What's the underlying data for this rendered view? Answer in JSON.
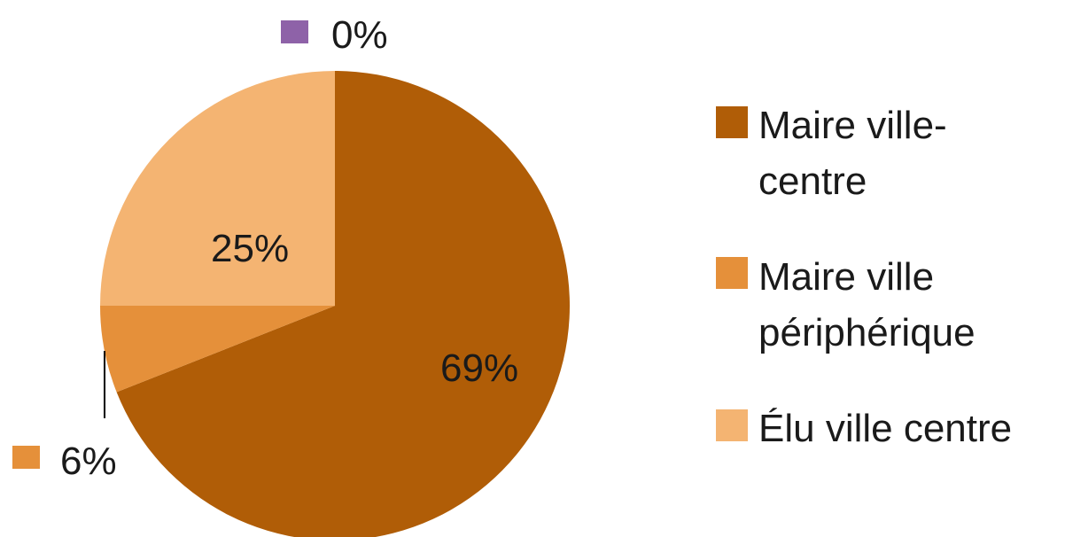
{
  "chart_data": {
    "type": "pie",
    "slices": [
      {
        "label": "Maire ville-centre",
        "value": 69,
        "display": "69%",
        "color": "#B05D07"
      },
      {
        "label": "Maire ville périphérique",
        "value": 6,
        "display": "6%",
        "color": "#E5903A"
      },
      {
        "label": "Élu ville centre",
        "value": 25,
        "display": "25%",
        "color": "#F4B472"
      },
      {
        "label": "",
        "value": 0,
        "display": "0%",
        "color": "#8E62A8"
      }
    ],
    "legend": {
      "placement": "right",
      "entries": [
        {
          "lines": [
            "Maire ville-",
            "centre"
          ],
          "color": "#B05D07"
        },
        {
          "lines": [
            "Maire ville",
            "périphérique"
          ],
          "color": "#E5903A"
        },
        {
          "lines": [
            "Élu ville centre"
          ],
          "color": "#F4B472"
        }
      ]
    }
  }
}
